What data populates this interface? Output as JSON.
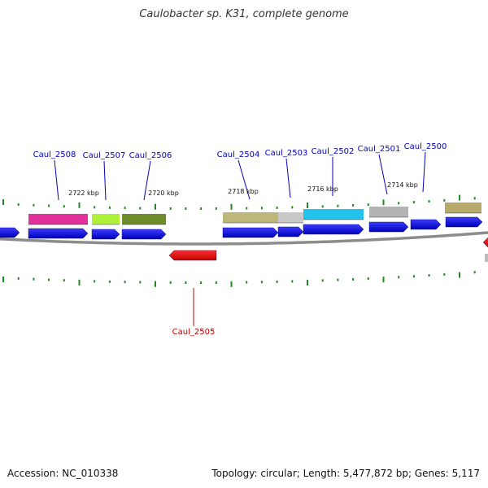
{
  "title": "Caulobacter sp. K31, complete genome",
  "footer": {
    "accession": "Accession: NC_010338",
    "topology": "Topology: circular; Length: 5,477,872 bp; Genes: 5,117"
  },
  "colors": {
    "backbone": "#8c8c8c",
    "cds_forward": "#0a0adc",
    "cds_reverse": "#e00000",
    "tick": "#1f8a1f",
    "label_forward": "#0000c0",
    "label_reverse": "#c00000"
  },
  "kbp_labels": [
    "2722 kbp",
    "2720 kbp",
    "2718 kbp",
    "2716 kbp",
    "2714 kbp"
  ],
  "gene_labels": [
    {
      "name": "Caul_2508",
      "strand": "forward"
    },
    {
      "name": "Caul_2507",
      "strand": "forward"
    },
    {
      "name": "Caul_2506",
      "strand": "forward"
    },
    {
      "name": "Caul_2504",
      "strand": "forward"
    },
    {
      "name": "Caul_2503",
      "strand": "forward"
    },
    {
      "name": "Caul_2502",
      "strand": "forward"
    },
    {
      "name": "Caul_2501",
      "strand": "forward"
    },
    {
      "name": "Caul_2500",
      "strand": "forward"
    },
    {
      "name": "Caul_2505",
      "strand": "reverse"
    }
  ],
  "function_bar_colors": [
    "#e0309a",
    "#aef03a",
    "#6e8c2a",
    "#bdb77a",
    "#c8c8c8",
    "#22c4ee",
    "#b4b4b4",
    "#b7a96a"
  ]
}
